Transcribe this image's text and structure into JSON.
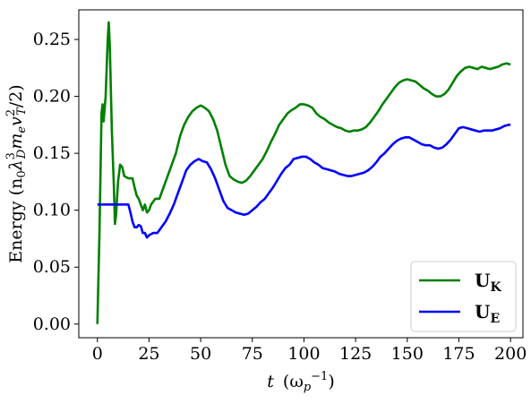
{
  "chart_data": {
    "type": "line",
    "title": "",
    "xlabel": {
      "main": "t",
      "unit_prefix": "(ω",
      "unit_sub": "p",
      "unit_sup": "−1",
      "unit_suffix": ")"
    },
    "ylabel": {
      "prefix": "Energy (n",
      "s1": "0",
      "mid1": "λ",
      "sup2": "3",
      "sub2": "D",
      "mid2": "m",
      "sub3": "e",
      "mid3": "v",
      "sup4": "2",
      "sub4": "T",
      "suffix": "/2)"
    },
    "xlim": [
      -9,
      206
    ],
    "ylim": [
      -0.012,
      0.276
    ],
    "xticks": [
      0,
      25,
      50,
      75,
      100,
      125,
      150,
      175,
      200
    ],
    "xtick_labels": [
      "0",
      "25",
      "50",
      "75",
      "100",
      "125",
      "150",
      "175",
      "200"
    ],
    "yticks": [
      0.0,
      0.05,
      0.1,
      0.15,
      0.2,
      0.25
    ],
    "ytick_labels": [
      "0.00",
      "0.05",
      "0.10",
      "0.15",
      "0.20",
      "0.25"
    ],
    "grid": false,
    "legend_position": "lower-right",
    "series": [
      {
        "name": "U",
        "name_sub": "K",
        "color": "#008000",
        "points": [
          [
            0,
            0.0
          ],
          [
            1,
            0.08
          ],
          [
            2,
            0.185
          ],
          [
            2.5,
            0.193
          ],
          [
            3,
            0.178
          ],
          [
            4,
            0.2
          ],
          [
            5,
            0.25
          ],
          [
            5.5,
            0.265
          ],
          [
            6,
            0.245
          ],
          [
            7,
            0.17
          ],
          [
            8,
            0.12
          ],
          [
            8.5,
            0.088
          ],
          [
            9,
            0.095
          ],
          [
            10,
            0.125
          ],
          [
            11,
            0.14
          ],
          [
            12,
            0.138
          ],
          [
            13,
            0.13
          ],
          [
            15,
            0.128
          ],
          [
            17,
            0.128
          ],
          [
            18,
            0.12
          ],
          [
            19,
            0.113
          ],
          [
            20,
            0.11
          ],
          [
            21,
            0.105
          ],
          [
            22,
            0.1
          ],
          [
            23,
            0.105
          ],
          [
            24,
            0.098
          ],
          [
            25,
            0.1
          ],
          [
            26,
            0.105
          ],
          [
            28,
            0.11
          ],
          [
            30,
            0.11
          ],
          [
            32,
            0.12
          ],
          [
            34,
            0.13
          ],
          [
            36,
            0.14
          ],
          [
            38,
            0.15
          ],
          [
            40,
            0.165
          ],
          [
            42,
            0.175
          ],
          [
            44,
            0.182
          ],
          [
            46,
            0.187
          ],
          [
            48,
            0.19
          ],
          [
            50,
            0.192
          ],
          [
            52,
            0.19
          ],
          [
            54,
            0.187
          ],
          [
            56,
            0.18
          ],
          [
            58,
            0.17
          ],
          [
            60,
            0.155
          ],
          [
            62,
            0.14
          ],
          [
            64,
            0.13
          ],
          [
            66,
            0.127
          ],
          [
            68,
            0.125
          ],
          [
            70,
            0.124
          ],
          [
            72,
            0.126
          ],
          [
            74,
            0.13
          ],
          [
            76,
            0.135
          ],
          [
            78,
            0.14
          ],
          [
            80,
            0.145
          ],
          [
            82,
            0.152
          ],
          [
            84,
            0.16
          ],
          [
            86,
            0.167
          ],
          [
            88,
            0.175
          ],
          [
            90,
            0.18
          ],
          [
            92,
            0.185
          ],
          [
            94,
            0.188
          ],
          [
            96,
            0.19
          ],
          [
            98,
            0.193
          ],
          [
            100,
            0.193
          ],
          [
            102,
            0.192
          ],
          [
            104,
            0.19
          ],
          [
            106,
            0.185
          ],
          [
            108,
            0.182
          ],
          [
            110,
            0.18
          ],
          [
            112,
            0.177
          ],
          [
            114,
            0.175
          ],
          [
            116,
            0.173
          ],
          [
            118,
            0.172
          ],
          [
            120,
            0.17
          ],
          [
            122,
            0.169
          ],
          [
            124,
            0.17
          ],
          [
            126,
            0.17
          ],
          [
            128,
            0.171
          ],
          [
            130,
            0.173
          ],
          [
            132,
            0.177
          ],
          [
            134,
            0.182
          ],
          [
            136,
            0.187
          ],
          [
            138,
            0.193
          ],
          [
            140,
            0.198
          ],
          [
            142,
            0.203
          ],
          [
            144,
            0.208
          ],
          [
            146,
            0.212
          ],
          [
            148,
            0.214
          ],
          [
            150,
            0.215
          ],
          [
            152,
            0.214
          ],
          [
            154,
            0.213
          ],
          [
            156,
            0.21
          ],
          [
            158,
            0.207
          ],
          [
            160,
            0.205
          ],
          [
            162,
            0.202
          ],
          [
            164,
            0.2
          ],
          [
            166,
            0.2
          ],
          [
            168,
            0.202
          ],
          [
            170,
            0.206
          ],
          [
            172,
            0.212
          ],
          [
            174,
            0.218
          ],
          [
            176,
            0.222
          ],
          [
            178,
            0.225
          ],
          [
            180,
            0.226
          ],
          [
            182,
            0.225
          ],
          [
            184,
            0.224
          ],
          [
            186,
            0.226
          ],
          [
            188,
            0.225
          ],
          [
            190,
            0.224
          ],
          [
            192,
            0.225
          ],
          [
            194,
            0.226
          ],
          [
            196,
            0.228
          ],
          [
            198,
            0.229
          ],
          [
            200,
            0.228
          ]
        ]
      },
      {
        "name": "U",
        "name_sub": "E",
        "color": "#0000ff",
        "points": [
          [
            0,
            0.105
          ],
          [
            3,
            0.105
          ],
          [
            6,
            0.105
          ],
          [
            9,
            0.105
          ],
          [
            12,
            0.105
          ],
          [
            15,
            0.105
          ],
          [
            16,
            0.098
          ],
          [
            17,
            0.09
          ],
          [
            18,
            0.085
          ],
          [
            19,
            0.085
          ],
          [
            20,
            0.087
          ],
          [
            21,
            0.086
          ],
          [
            22,
            0.08
          ],
          [
            23,
            0.08
          ],
          [
            24,
            0.076
          ],
          [
            25,
            0.078
          ],
          [
            27,
            0.08
          ],
          [
            29,
            0.08
          ],
          [
            31,
            0.085
          ],
          [
            33,
            0.09
          ],
          [
            35,
            0.097
          ],
          [
            37,
            0.105
          ],
          [
            39,
            0.115
          ],
          [
            41,
            0.125
          ],
          [
            43,
            0.135
          ],
          [
            45,
            0.14
          ],
          [
            47,
            0.143
          ],
          [
            49,
            0.145
          ],
          [
            51,
            0.143
          ],
          [
            53,
            0.142
          ],
          [
            55,
            0.136
          ],
          [
            57,
            0.128
          ],
          [
            59,
            0.118
          ],
          [
            61,
            0.108
          ],
          [
            63,
            0.102
          ],
          [
            65,
            0.1
          ],
          [
            67,
            0.098
          ],
          [
            69,
            0.097
          ],
          [
            71,
            0.096
          ],
          [
            73,
            0.097
          ],
          [
            75,
            0.1
          ],
          [
            77,
            0.103
          ],
          [
            79,
            0.107
          ],
          [
            81,
            0.11
          ],
          [
            83,
            0.115
          ],
          [
            85,
            0.12
          ],
          [
            87,
            0.126
          ],
          [
            89,
            0.132
          ],
          [
            91,
            0.137
          ],
          [
            93,
            0.14
          ],
          [
            95,
            0.145
          ],
          [
            97,
            0.146
          ],
          [
            99,
            0.147
          ],
          [
            101,
            0.147
          ],
          [
            103,
            0.145
          ],
          [
            105,
            0.142
          ],
          [
            107,
            0.14
          ],
          [
            109,
            0.137
          ],
          [
            111,
            0.136
          ],
          [
            113,
            0.135
          ],
          [
            115,
            0.134
          ],
          [
            117,
            0.132
          ],
          [
            119,
            0.131
          ],
          [
            121,
            0.13
          ],
          [
            123,
            0.13
          ],
          [
            125,
            0.131
          ],
          [
            127,
            0.132
          ],
          [
            129,
            0.133
          ],
          [
            131,
            0.135
          ],
          [
            133,
            0.138
          ],
          [
            135,
            0.142
          ],
          [
            137,
            0.147
          ],
          [
            139,
            0.15
          ],
          [
            141,
            0.154
          ],
          [
            143,
            0.158
          ],
          [
            145,
            0.161
          ],
          [
            147,
            0.163
          ],
          [
            149,
            0.164
          ],
          [
            151,
            0.164
          ],
          [
            153,
            0.162
          ],
          [
            155,
            0.16
          ],
          [
            157,
            0.158
          ],
          [
            159,
            0.157
          ],
          [
            161,
            0.157
          ],
          [
            163,
            0.155
          ],
          [
            165,
            0.154
          ],
          [
            167,
            0.155
          ],
          [
            169,
            0.158
          ],
          [
            171,
            0.162
          ],
          [
            173,
            0.167
          ],
          [
            175,
            0.172
          ],
          [
            177,
            0.173
          ],
          [
            179,
            0.172
          ],
          [
            181,
            0.171
          ],
          [
            183,
            0.17
          ],
          [
            185,
            0.169
          ],
          [
            187,
            0.17
          ],
          [
            189,
            0.17
          ],
          [
            191,
            0.17
          ],
          [
            193,
            0.171
          ],
          [
            195,
            0.172
          ],
          [
            197,
            0.174
          ],
          [
            199,
            0.175
          ],
          [
            200,
            0.175
          ]
        ]
      }
    ]
  }
}
